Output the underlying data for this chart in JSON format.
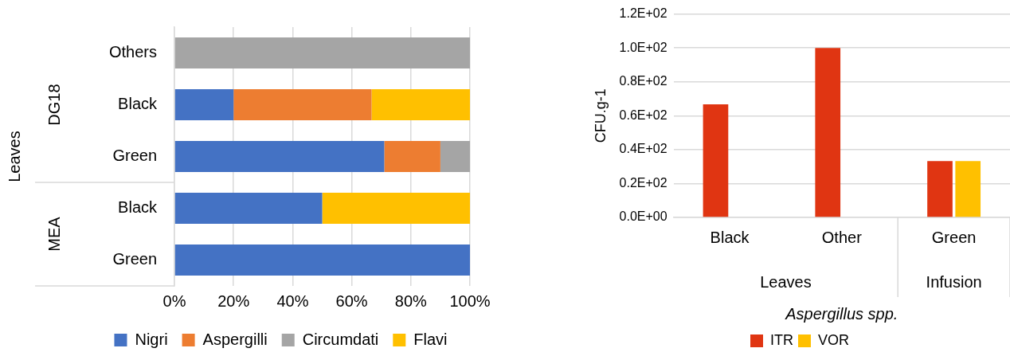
{
  "chart_data": [
    {
      "type": "bar",
      "orientation": "horizontal",
      "stacked": true,
      "categories": [
        "Others",
        "Black",
        "Green",
        "Black",
        "Green"
      ],
      "series": [
        {
          "name": "Nigri",
          "color": "#4472c4",
          "values": [
            null,
            20,
            71,
            50,
            100
          ]
        },
        {
          "name": "Aspergilli",
          "color": "#ed7d31",
          "values": [
            null,
            46.7,
            19,
            null,
            null
          ]
        },
        {
          "name": "Circumdati",
          "color": "#a5a5a5",
          "values": [
            100,
            null,
            10,
            null,
            null
          ]
        },
        {
          "name": "Flavi",
          "color": "#ffc000",
          "values": [
            null,
            33.3,
            null,
            50,
            null
          ]
        }
      ],
      "xlim": [
        0,
        100
      ],
      "xticks": [
        {
          "value": 0,
          "label": "0%"
        },
        {
          "value": 20,
          "label": "20%"
        },
        {
          "value": 40,
          "label": "40%"
        },
        {
          "value": 60,
          "label": "60%"
        },
        {
          "value": 80,
          "label": "80%"
        },
        {
          "value": 100,
          "label": "100%"
        }
      ],
      "grid": "x",
      "legend": "bottom",
      "annotations": [
        "DG18",
        "MEA",
        "Leaves"
      ]
    },
    {
      "type": "bar",
      "categories": [
        "Black",
        "Other",
        "Green"
      ],
      "series": [
        {
          "name": "ITR",
          "color": "#e03512",
          "values": [
            66.7,
            100,
            33.3
          ]
        },
        {
          "name": "VOR",
          "color": "#ffc000",
          "values": [
            null,
            null,
            33.3
          ]
        }
      ],
      "ylim": [
        0,
        120
      ],
      "yticks": [
        {
          "value": 0,
          "label": "0.0E+00"
        },
        {
          "value": 20,
          "label": "0.2E+02"
        },
        {
          "value": 40,
          "label": "0.4E+02"
        },
        {
          "value": 60,
          "label": "0.6E+02"
        },
        {
          "value": 80,
          "label": "0.8E+02"
        },
        {
          "value": 100,
          "label": "1.0E+02"
        },
        {
          "value": 120,
          "label": "1.2E+02"
        }
      ],
      "ylabel": "CFU.g-1",
      "xlabel": "Aspergillus spp.",
      "grid": "y",
      "legend": "bottom",
      "annotations": [
        "Leaves",
        "Infusion"
      ]
    }
  ]
}
